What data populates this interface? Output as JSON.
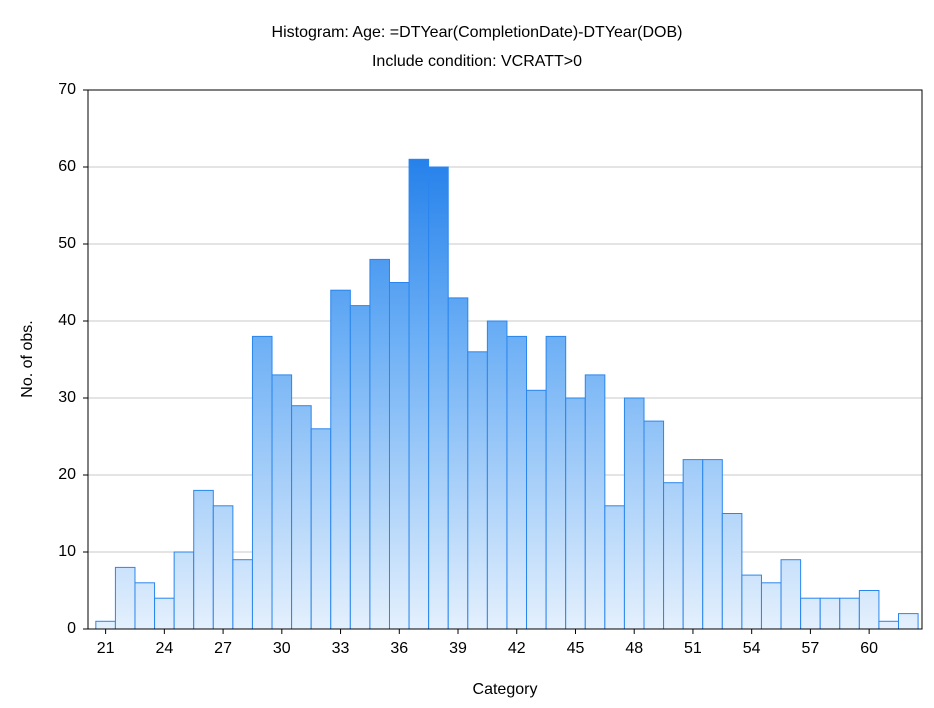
{
  "chart_data": {
    "type": "histogram",
    "title": "Histogram: Age: =DTYear(CompletionDate)-DTYear(DOB)",
    "subtitle": "Include condition: VCRATT>0",
    "x_label": "Category",
    "y_label": "No. of obs.",
    "bins": [
      20.5,
      21.5,
      22.5,
      23.5,
      24.5,
      25.5,
      26.5,
      27.5,
      28.5,
      29.5,
      30.5,
      31.5,
      32.5,
      33.5,
      34.5,
      35.5,
      36.5,
      37.5,
      38.5,
      39.5,
      40.5,
      41.5,
      42.5,
      43.5,
      44.5,
      45.5,
      46.5,
      47.5,
      48.5,
      49.5,
      50.5,
      51.5,
      52.5,
      53.5,
      54.5,
      55.5,
      56.5,
      57.5,
      58.5,
      59.5,
      60.5,
      61.5,
      62.5
    ],
    "values": [
      1,
      8,
      6,
      4,
      10,
      18,
      16,
      9,
      38,
      33,
      29,
      26,
      44,
      42,
      48,
      45,
      61,
      60,
      43,
      36,
      40,
      38,
      31,
      38,
      30,
      33,
      16,
      30,
      27,
      19,
      22,
      22,
      15,
      7,
      6,
      9,
      4,
      4,
      4,
      5,
      1,
      2
    ],
    "color": "#2a86ee",
    "xlim": [
      20.1,
      62.7
    ],
    "xticks": [
      21,
      24,
      27,
      30,
      33,
      36,
      39,
      42,
      45,
      48,
      51,
      54,
      57,
      60
    ],
    "ylim": [
      0,
      70
    ],
    "yticks": [
      0,
      10,
      20,
      30,
      40,
      50,
      60,
      70
    ],
    "grid": true
  }
}
